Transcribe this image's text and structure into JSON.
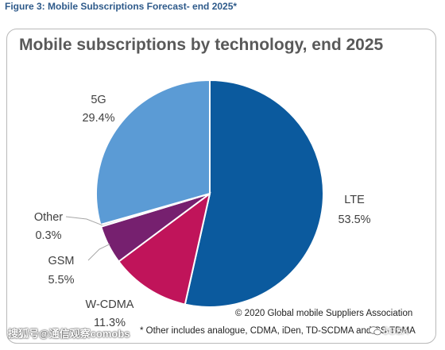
{
  "figure_caption": "Figure 3: Mobile Subscriptions Forecast- end 2025*",
  "chart_data": {
    "type": "pie",
    "title": "Mobile subscriptions by technology, end 2025",
    "slices": [
      {
        "label": "LTE",
        "value": 53.5,
        "value_label": "53.5%",
        "color": "#0b5a9e"
      },
      {
        "label": "W-CDMA",
        "value": 11.3,
        "value_label": "11.3%",
        "color": "#c0145a"
      },
      {
        "label": "GSM",
        "value": 5.5,
        "value_label": "5.5%",
        "color": "#76206f"
      },
      {
        "label": "Other",
        "value": 0.3,
        "value_label": "0.3%",
        "color": "#c8c8c8"
      },
      {
        "label": "5G",
        "value": 29.4,
        "value_label": "29.4%",
        "color": "#5b9bd5"
      }
    ]
  },
  "copyright": "© 2020 Global mobile Suppliers Association",
  "footnote": "* Other includes analogue, CDMA, iDen, TD-SCDMA and CS-TDMA",
  "watermark": {
    "left": "搜狐号@通信观察comobs",
    "right": "5GSA"
  }
}
